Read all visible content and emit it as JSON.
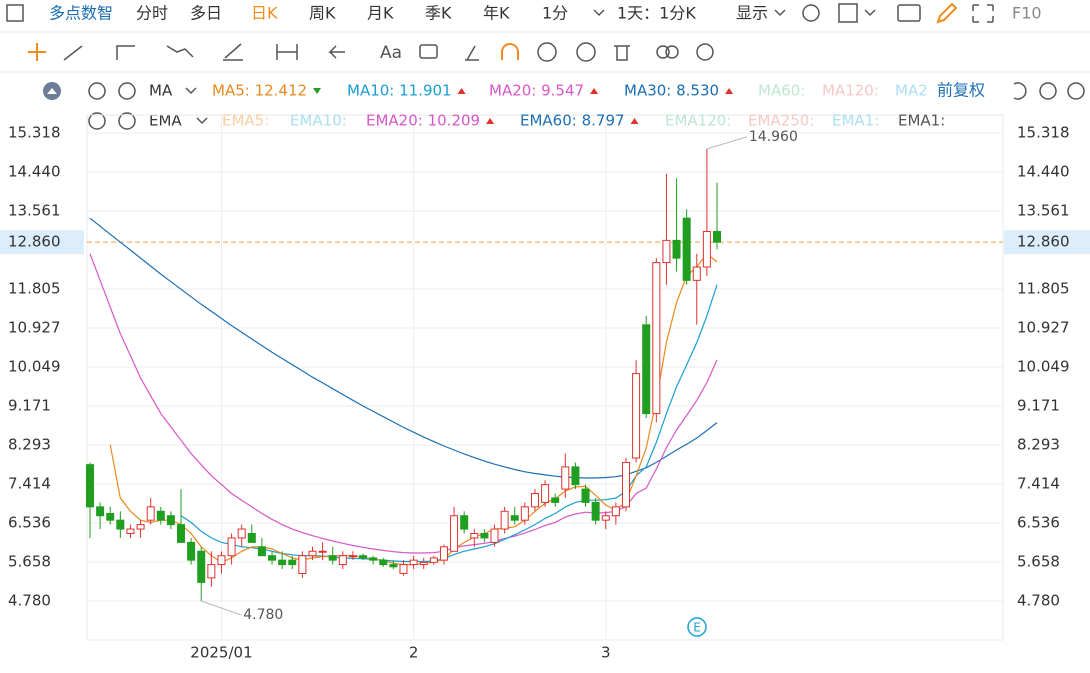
{
  "toolbar": {
    "brand": "多点数智",
    "tabs": [
      "分时",
      "多日",
      "日K",
      "周K",
      "月K",
      "季K",
      "年K"
    ],
    "active_tab": 2,
    "interval": "1分",
    "range": "1天：1分K",
    "display": "显示",
    "f10": "F10"
  },
  "tools": {
    "text_tool": "Aa"
  },
  "indicators": {
    "main": {
      "name": "MA",
      "items": [
        {
          "text": "MA5: 12.412",
          "color": "#e8891c",
          "trend": "down"
        },
        {
          "text": "MA10: 11.901",
          "color": "#1a9fd1",
          "trend": "up"
        },
        {
          "text": "MA20: 9.547",
          "color": "#d957c8",
          "trend": "up"
        },
        {
          "text": "MA30: 8.530",
          "color": "#1c6fb5",
          "trend": "up"
        },
        {
          "text": "MA60:",
          "color": "#bfe6d2"
        },
        {
          "text": "MA120:",
          "color": "#f5c8c8"
        },
        {
          "text": "MA2",
          "color": "#abdff2"
        }
      ],
      "adjust": "前复权"
    },
    "second": {
      "name": "EMA",
      "items": [
        {
          "text": "EMA5:",
          "color": "#f6cf9f"
        },
        {
          "text": "EMA10:",
          "color": "#abdff2"
        },
        {
          "text": "EMA20: 10.209",
          "color": "#d957c8",
          "trend": "up"
        },
        {
          "text": "EMA60: 8.797",
          "color": "#1c6fb5",
          "trend": "up"
        },
        {
          "text": "EMA120:",
          "color": "#bfe6d2"
        },
        {
          "text": "EMA250:",
          "color": "#f5c8c8"
        },
        {
          "text": "EMA1:",
          "color": "#abdff2"
        },
        {
          "text": "EMA1:",
          "color": "#555555"
        }
      ]
    }
  },
  "chart_data": {
    "type": "candlestick",
    "categories": [
      null,
      null,
      null,
      null,
      null,
      null,
      null,
      null,
      null,
      null,
      null,
      null,
      null,
      "2025/01",
      null,
      null,
      null,
      null,
      null,
      null,
      null,
      null,
      null,
      null,
      null,
      null,
      null,
      null,
      null,
      null,
      null,
      null,
      "2",
      null,
      null,
      null,
      null,
      null,
      null,
      null,
      null,
      null,
      null,
      null,
      null,
      null,
      null,
      null,
      null,
      null,
      null,
      "3",
      null,
      null,
      null,
      null,
      null,
      null,
      null,
      null,
      null,
      null,
      null
    ],
    "open": [
      7.85,
      6.9,
      6.75,
      6.6,
      6.3,
      6.4,
      6.6,
      6.8,
      6.7,
      6.5,
      6.1,
      5.9,
      5.3,
      5.6,
      5.8,
      6.2,
      6.3,
      6.0,
      5.8,
      5.7,
      5.7,
      5.4,
      5.8,
      5.9,
      5.8,
      5.6,
      5.8,
      5.8,
      5.75,
      5.7,
      5.6,
      5.4,
      5.6,
      5.6,
      5.65,
      5.7,
      5.9,
      6.7,
      6.2,
      6.3,
      6.1,
      6.4,
      6.7,
      6.6,
      6.9,
      7.0,
      7.1,
      7.3,
      7.8,
      7.3,
      7.0,
      6.6,
      6.7,
      6.9,
      8.0,
      11.0,
      9.0,
      12.4,
      12.9,
      13.4,
      12.0,
      12.3,
      13.1
    ],
    "high": [
      7.9,
      7.0,
      6.9,
      6.8,
      6.5,
      6.6,
      7.1,
      6.9,
      6.8,
      7.3,
      6.2,
      6.0,
      5.9,
      5.9,
      6.3,
      6.5,
      6.5,
      6.2,
      5.9,
      5.9,
      5.8,
      5.9,
      6.0,
      6.1,
      6.0,
      5.9,
      5.9,
      5.85,
      5.8,
      5.75,
      5.7,
      5.7,
      5.8,
      5.75,
      5.8,
      6.05,
      6.9,
      6.8,
      6.4,
      6.4,
      6.5,
      6.9,
      6.9,
      7.0,
      7.3,
      7.5,
      7.2,
      8.1,
      7.9,
      7.4,
      7.1,
      6.8,
      7.0,
      8.0,
      10.2,
      11.2,
      12.5,
      14.4,
      14.3,
      13.6,
      12.6,
      14.96,
      14.2
    ],
    "low": [
      6.2,
      6.4,
      6.5,
      6.2,
      6.2,
      6.2,
      6.5,
      6.5,
      6.4,
      6.1,
      5.6,
      4.78,
      5.1,
      5.4,
      5.6,
      6.0,
      6.1,
      5.8,
      5.6,
      5.5,
      5.5,
      5.3,
      5.7,
      5.7,
      5.6,
      5.5,
      5.7,
      5.7,
      5.6,
      5.55,
      5.5,
      5.35,
      5.5,
      5.5,
      5.6,
      5.6,
      5.9,
      6.3,
      6.0,
      6.1,
      6.0,
      6.3,
      6.5,
      6.5,
      6.8,
      6.9,
      6.9,
      7.1,
      7.3,
      6.9,
      6.5,
      6.4,
      6.5,
      6.8,
      7.9,
      8.9,
      8.8,
      11.9,
      12.2,
      11.9,
      11.0,
      12.1,
      12.7
    ],
    "close": [
      6.9,
      6.7,
      6.6,
      6.4,
      6.4,
      6.5,
      6.9,
      6.6,
      6.5,
      6.1,
      5.7,
      5.2,
      5.6,
      5.8,
      6.2,
      6.4,
      6.1,
      5.8,
      5.7,
      5.6,
      5.6,
      5.8,
      5.9,
      5.9,
      5.7,
      5.8,
      5.8,
      5.75,
      5.7,
      5.6,
      5.55,
      5.6,
      5.7,
      5.65,
      5.75,
      6.0,
      6.7,
      6.4,
      6.3,
      6.2,
      6.4,
      6.8,
      6.6,
      6.9,
      7.2,
      7.4,
      7.0,
      7.8,
      7.4,
      7.0,
      6.6,
      6.7,
      6.9,
      7.9,
      9.9,
      9.0,
      12.4,
      12.9,
      12.5,
      12.0,
      12.3,
      13.1,
      12.86
    ],
    "up_color": "#e0312d",
    "down_color": "#1f9e1f",
    "lines": [
      {
        "color": "#1c6fb5",
        "values": [
          13.4,
          13.22,
          13.04,
          12.86,
          12.68,
          12.5,
          12.32,
          12.14,
          11.97,
          11.8,
          11.63,
          11.46,
          11.3,
          11.14,
          10.98,
          10.83,
          10.68,
          10.53,
          10.38,
          10.24,
          10.1,
          9.96,
          9.82,
          9.69,
          9.56,
          9.43,
          9.3,
          9.17,
          9.05,
          8.93,
          8.81,
          8.69,
          8.58,
          8.47,
          8.37,
          8.27,
          8.18,
          8.09,
          8.01,
          7.93,
          7.86,
          7.8,
          7.74,
          7.69,
          7.65,
          7.62,
          7.59,
          7.57,
          7.56,
          7.55,
          7.55,
          7.56,
          7.58,
          7.62,
          7.7,
          7.78,
          7.9,
          8.04,
          8.18,
          8.31,
          8.45,
          8.62,
          8.797
        ]
      },
      {
        "color": "#d957c8",
        "values": [
          12.6,
          12.0,
          11.4,
          10.8,
          10.3,
          9.8,
          9.4,
          9.0,
          8.7,
          8.4,
          8.1,
          7.85,
          7.6,
          7.4,
          7.2,
          7.05,
          6.9,
          6.75,
          6.62,
          6.5,
          6.4,
          6.32,
          6.25,
          6.19,
          6.13,
          6.08,
          6.03,
          5.99,
          5.95,
          5.92,
          5.89,
          5.87,
          5.86,
          5.86,
          5.87,
          5.9,
          5.98,
          6.02,
          6.05,
          6.08,
          6.12,
          6.19,
          6.24,
          6.31,
          6.39,
          6.48,
          6.55,
          6.67,
          6.74,
          6.78,
          6.76,
          6.77,
          6.8,
          6.91,
          7.2,
          7.32,
          7.75,
          8.23,
          8.63,
          8.96,
          9.3,
          9.7,
          10.209
        ]
      },
      {
        "color": "#1a9fd1",
        "values": [
          null,
          null,
          null,
          null,
          null,
          null,
          null,
          null,
          null,
          6.7,
          6.55,
          6.35,
          6.2,
          6.1,
          6.05,
          6.0,
          5.98,
          5.95,
          5.9,
          5.85,
          5.82,
          5.8,
          5.8,
          5.79,
          5.77,
          5.75,
          5.74,
          5.73,
          5.72,
          5.7,
          5.68,
          5.67,
          5.67,
          5.67,
          5.68,
          5.73,
          5.83,
          5.9,
          5.95,
          6.0,
          6.07,
          6.17,
          6.27,
          6.38,
          6.5,
          6.64,
          6.75,
          6.9,
          7.0,
          7.05,
          7.05,
          7.06,
          7.1,
          7.25,
          7.6,
          7.8,
          8.35,
          9.0,
          9.6,
          10.1,
          10.6,
          11.2,
          11.901
        ]
      },
      {
        "color": "#e8891c",
        "values": [
          null,
          null,
          8.3,
          7.1,
          6.8,
          6.6,
          6.55,
          6.6,
          6.6,
          6.5,
          6.3,
          6.0,
          5.8,
          5.65,
          5.75,
          5.9,
          6.0,
          6.0,
          5.95,
          5.85,
          5.75,
          5.7,
          5.75,
          5.78,
          5.8,
          5.8,
          5.8,
          5.76,
          5.73,
          5.69,
          5.63,
          5.6,
          5.6,
          5.62,
          5.66,
          5.72,
          5.95,
          6.1,
          6.22,
          6.3,
          6.4,
          6.42,
          6.45,
          6.6,
          6.8,
          6.98,
          7.08,
          7.26,
          7.35,
          7.36,
          7.16,
          6.94,
          6.82,
          7.02,
          7.6,
          8.22,
          9.3,
          10.6,
          11.5,
          12.1,
          12.3,
          12.6,
          12.412
        ]
      }
    ],
    "ylim": [
      3.902,
      15.723
    ],
    "yticks": [
      15.318,
      {
        "value": 14.44,
        "label": "14.440"
      },
      13.561,
      11.805,
      10.927,
      10.049,
      9.171,
      8.293,
      7.414,
      6.536,
      5.658,
      {
        "value": 4.78,
        "label": "4.780"
      }
    ],
    "last_price": {
      "value": 12.86,
      "label": "12.860"
    },
    "annotations": [
      {
        "index": 61,
        "value": 14.96,
        "label": "14.960"
      },
      {
        "index": 11,
        "value": 4.78,
        "label": "4.780"
      }
    ],
    "grid": true
  }
}
